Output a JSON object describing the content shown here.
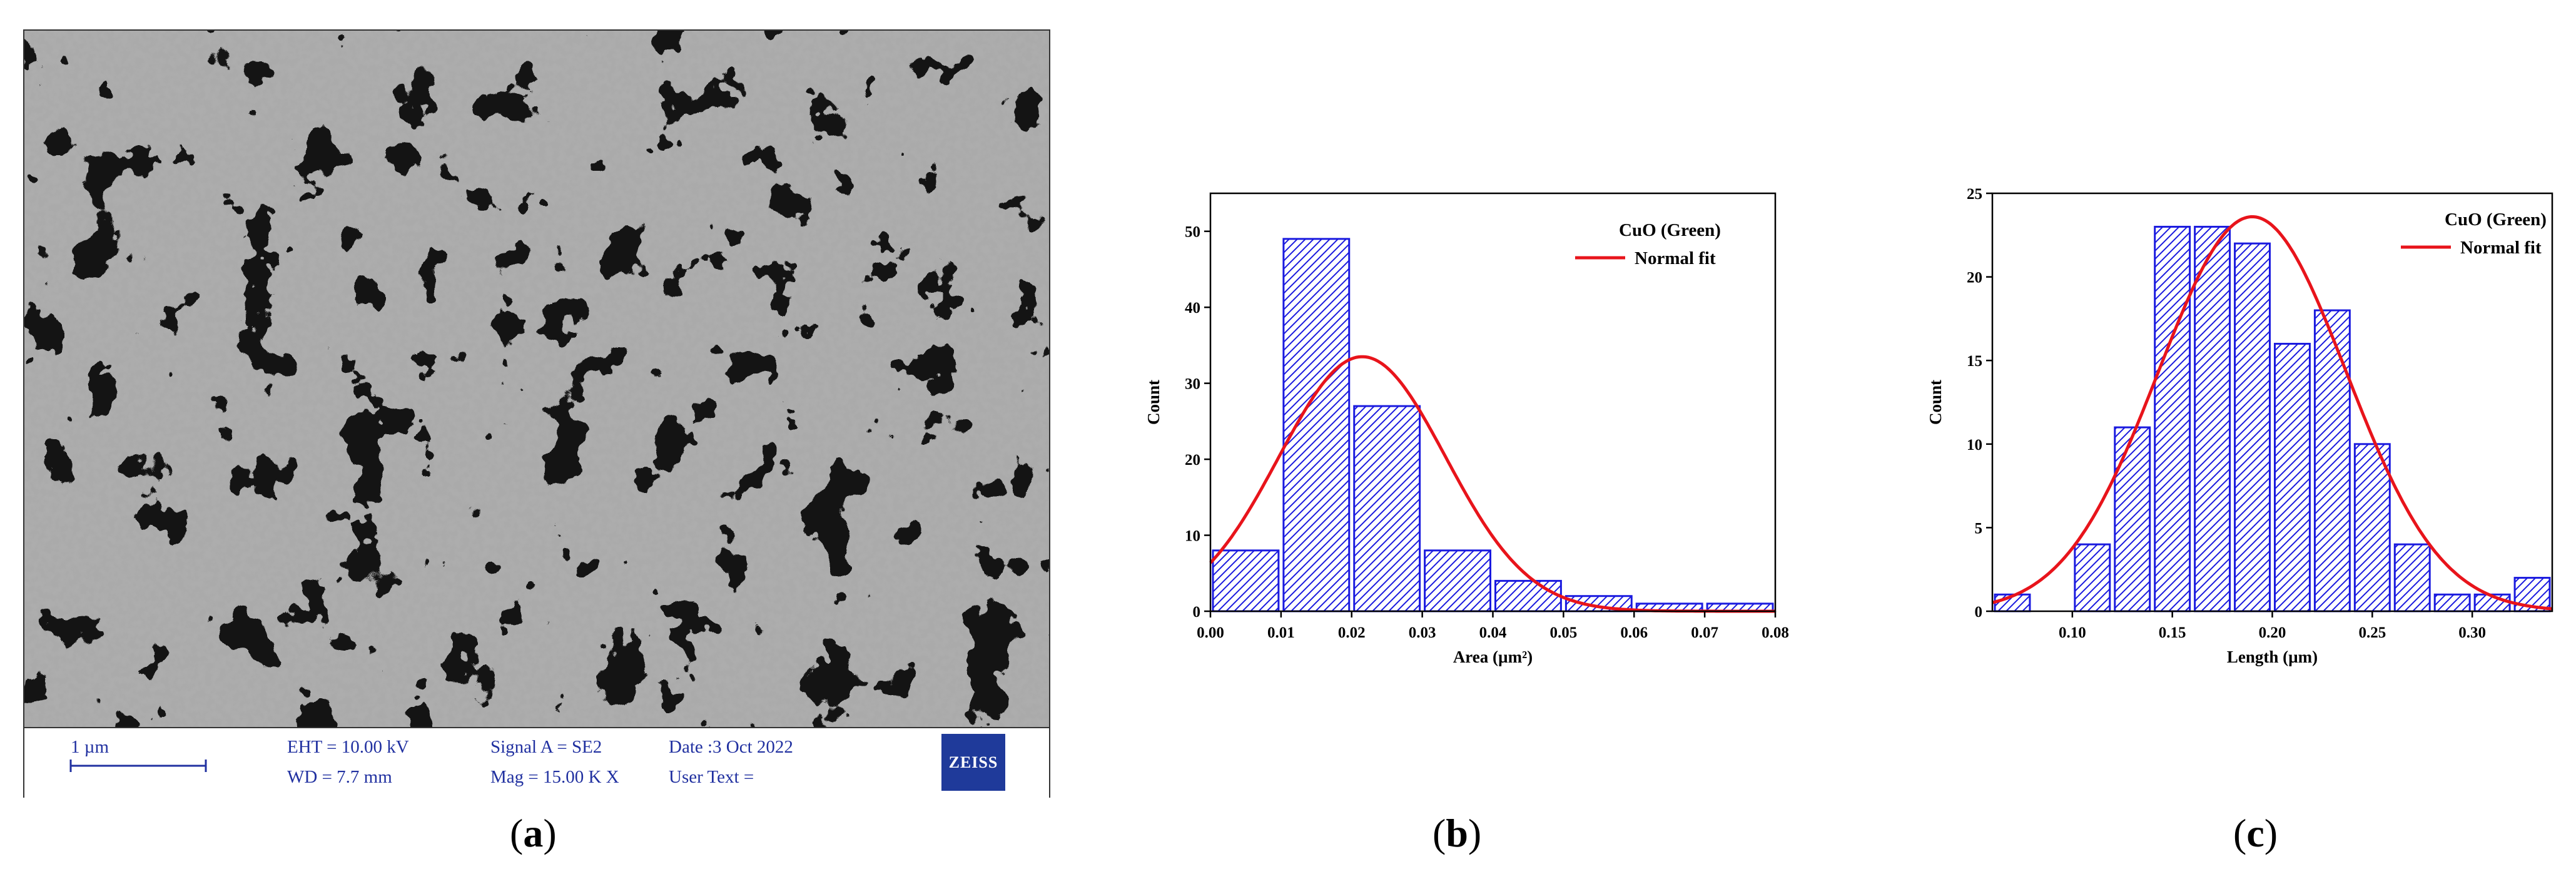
{
  "panel_a": {
    "caption": "a",
    "scale_label": "1 µm",
    "eht": "EHT = 10.00 kV",
    "wd": "WD =  7.7 mm",
    "signal": "Signal A = SE2",
    "mag": "Mag =   15.00 K X",
    "date": "Date :3 Oct 2022",
    "user_text": "User Text =",
    "logo_text": "ZEISS"
  },
  "panel_b": {
    "caption": "b"
  },
  "panel_c": {
    "caption": "c"
  },
  "colors": {
    "bar_edge": "#1a1adf",
    "fit_line": "#e8141b",
    "sem_text": "#2030a0",
    "logo_bg": "#1f3a9a"
  },
  "chart_data": [
    {
      "type": "bar",
      "subtype": "histogram",
      "legend": [
        "CuO (Green)",
        "Normal fit"
      ],
      "legend_position": "top-right",
      "xlabel": "Area (µm²)",
      "ylabel": "Count",
      "xlim": [
        0,
        0.08
      ],
      "ylim": [
        0,
        55
      ],
      "xticks": [
        0.0,
        0.01,
        0.02,
        0.03,
        0.04,
        0.05,
        0.06,
        0.07,
        0.08
      ],
      "xtick_labels": [
        "0.00",
        "0.01",
        "0.02",
        "0.03",
        "0.04",
        "0.05",
        "0.06",
        "0.07",
        "0.08"
      ],
      "yticks": [
        0,
        10,
        20,
        30,
        40,
        50
      ],
      "ytick_labels": [
        "0",
        "10",
        "20",
        "30",
        "40",
        "50"
      ],
      "bin_width": 0.01,
      "bin_starts": [
        0.0,
        0.01,
        0.02,
        0.03,
        0.04,
        0.05,
        0.06,
        0.07
      ],
      "values": [
        8,
        49,
        27,
        8,
        4,
        2,
        1,
        1
      ],
      "normal_fit": {
        "mean": 0.0215,
        "sd": 0.0118,
        "peak": 33.5
      },
      "grid": false
    },
    {
      "type": "bar",
      "subtype": "histogram",
      "legend": [
        "CuO (Green)",
        "Normal fit"
      ],
      "legend_position": "top-right",
      "xlabel": "Length (µm)",
      "ylabel": "Count",
      "xlim": [
        0.06,
        0.34
      ],
      "ylim": [
        0,
        25
      ],
      "xticks": [
        0.1,
        0.15,
        0.2,
        0.25,
        0.3
      ],
      "xtick_labels": [
        "0.10",
        "0.15",
        "0.20",
        "0.25",
        "0.30"
      ],
      "yticks": [
        0,
        5,
        10,
        15,
        20,
        25
      ],
      "ytick_labels": [
        "0",
        "5",
        "10",
        "15",
        "20",
        "25"
      ],
      "bin_width": 0.02,
      "bin_starts": [
        0.06,
        0.08,
        0.1,
        0.12,
        0.14,
        0.16,
        0.18,
        0.2,
        0.22,
        0.24,
        0.26,
        0.28,
        0.3,
        0.32
      ],
      "values": [
        1,
        0,
        4,
        11,
        23,
        23,
        22,
        16,
        18,
        10,
        4,
        1,
        1,
        2
      ],
      "normal_fit": {
        "mean": 0.19,
        "sd": 0.047,
        "peak": 23.6
      },
      "grid": false
    }
  ]
}
